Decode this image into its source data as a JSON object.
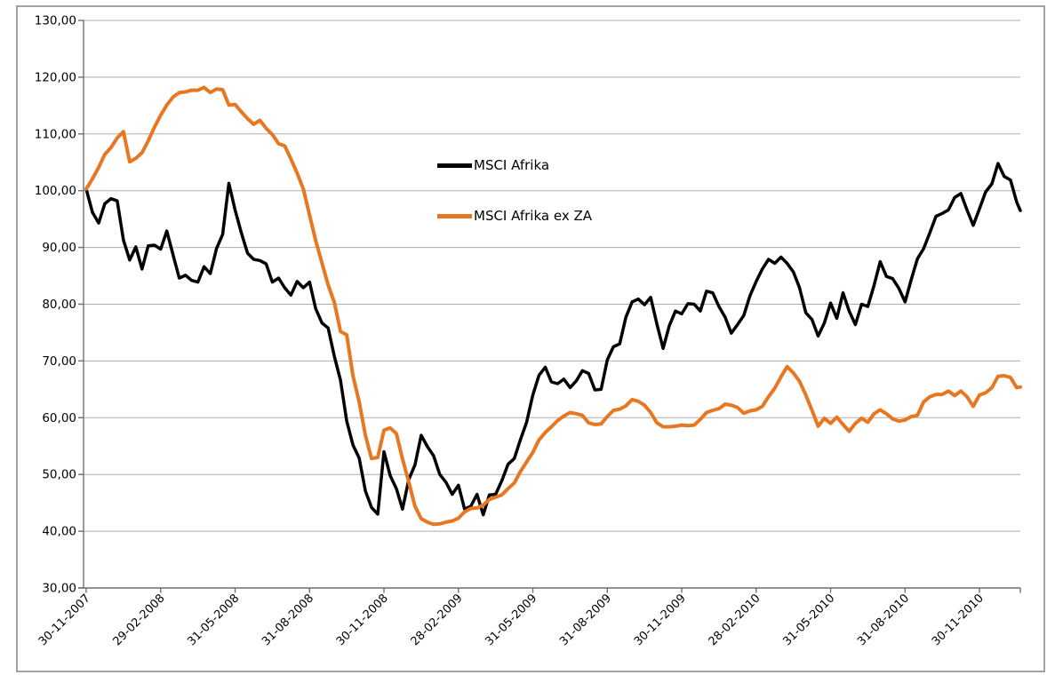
{
  "chart_data": {
    "type": "line",
    "title": "",
    "grid": true,
    "x_axis": {
      "unit": "date",
      "months_per_tick": 3,
      "tick_labels": [
        "30-11-2007",
        "29-02-2008",
        "31-05-2008",
        "31-08-2008",
        "30-11-2008",
        "28-02-2009",
        "31-05-2009",
        "31-08-2009",
        "30-11-2009",
        "28-02-2010",
        "31-05-2010",
        "31-08-2010",
        "30-11-2010"
      ]
    },
    "y_axis": {
      "min": 30,
      "max": 130,
      "step": 10,
      "tick_labels": [
        "30,00",
        "40,00",
        "50,00",
        "60,00",
        "70,00",
        "80,00",
        "90,00",
        "100,00",
        "110,00",
        "120,00",
        "130,00"
      ]
    },
    "legend": {
      "position": "inside-upper-middle",
      "items": [
        {
          "label": "MSCI Afrika",
          "color": "#000000"
        },
        {
          "label": "MSCI Afrika ex ZA",
          "color": "#E87722"
        }
      ]
    },
    "series": [
      {
        "name": "MSCI Afrika",
        "color": "#000000",
        "stroke_width": 3.5,
        "t0_months": 0,
        "dt_months": 0.25,
        "values": [
          100.3,
          96.2,
          94.3,
          97.7,
          98.6,
          98.2,
          91.3,
          87.8,
          90.1,
          86.2,
          90.3,
          90.4,
          89.7,
          92.9,
          88.7,
          84.6,
          85.1,
          84.2,
          83.9,
          86.6,
          85.4,
          89.8,
          92.3,
          101.3,
          96.6,
          92.6,
          89,
          87.9,
          87.7,
          87.1,
          83.9,
          84.6,
          82.9,
          81.6,
          84,
          82.9,
          83.9,
          79.2,
          76.7,
          75.8,
          70.8,
          66.6,
          59.4,
          55.2,
          52.9,
          47.1,
          44.2,
          43,
          54,
          49.8,
          47.5,
          43.9,
          49.1,
          51.7,
          56.9,
          54.9,
          53.3,
          50,
          48.6,
          46.5,
          48.1,
          43.9,
          44.4,
          46.5,
          42.9,
          46.4,
          46.5,
          48.9,
          51.8,
          52.8,
          56.1,
          59.2,
          64,
          67.5,
          68.9,
          66.3,
          66,
          66.8,
          65.3,
          66.5,
          68.3,
          67.8,
          64.9,
          65,
          70.2,
          72.5,
          73,
          77.7,
          80.4,
          80.9,
          79.9,
          81.2,
          76.5,
          72.2,
          76.2,
          78.8,
          78.3,
          80.1,
          80,
          78.8,
          82.3,
          82,
          79.6,
          77.7,
          74.9,
          76.4,
          78,
          81.5,
          84,
          86.2,
          87.9,
          87.2,
          88.3,
          87.2,
          85.7,
          82.9,
          78.5,
          77.3,
          74.4,
          76.7,
          80.2,
          77.5,
          82,
          78.8,
          76.4,
          80,
          79.6,
          83.3,
          87.5,
          84.9,
          84.5,
          82.8,
          80.4,
          84.3,
          88,
          89.8,
          92.6,
          95.5,
          96,
          96.6,
          98.8,
          99.5,
          96.6,
          93.9,
          96.8,
          99.8,
          101.2,
          104.8,
          102.5,
          101.9,
          98,
          96.5
        ]
      },
      {
        "name": "MSCI Afrika ex ZA",
        "color": "#E87722",
        "stroke_width": 4,
        "t0_months": 0,
        "dt_months": 0.25,
        "values": [
          100.3,
          102.1,
          104.1,
          106.4,
          107.6,
          109.3,
          110.4,
          105.1,
          105.7,
          106.7,
          108.8,
          111.2,
          113.3,
          115.1,
          116.5,
          117.3,
          117.4,
          117.7,
          117.7,
          118.2,
          117.3,
          117.9,
          117.8,
          115.1,
          115.2,
          113.9,
          112.7,
          111.7,
          112.4,
          111,
          109.9,
          108.3,
          107.9,
          105.6,
          103.1,
          100.3,
          95.7,
          91.2,
          87.3,
          83.4,
          80.3,
          75.2,
          74.6,
          67.4,
          62.8,
          56.9,
          52.8,
          53,
          57.8,
          58.2,
          57.2,
          52.7,
          48.7,
          44.4,
          42.2,
          41.6,
          41.2,
          41.3,
          41.6,
          41.8,
          42.3,
          43.4,
          44,
          44.1,
          44.6,
          45.6,
          46,
          46.4,
          47.5,
          48.5,
          50.5,
          52.2,
          53.9,
          56.1,
          57.4,
          58.4,
          59.5,
          60.3,
          60.9,
          60.7,
          60.4,
          59.1,
          58.8,
          58.9,
          60.2,
          61.3,
          61.5,
          62.1,
          63.2,
          62.9,
          62.2,
          60.9,
          59.1,
          58.4,
          58.4,
          58.5,
          58.7,
          58.6,
          58.7,
          59.7,
          60.9,
          61.3,
          61.6,
          62.4,
          62.2,
          61.8,
          60.8,
          61.2,
          61.4,
          62,
          63.7,
          65.2,
          67.2,
          69,
          67.9,
          66.4,
          64,
          61.3,
          58.5,
          59.9,
          59,
          60.1,
          58.8,
          57.6,
          59,
          59.9,
          59.2,
          60.7,
          61.4,
          60.7,
          59.8,
          59.4,
          59.6,
          60.2,
          60.4,
          62.8,
          63.7,
          64.1,
          64.1,
          64.7,
          63.9,
          64.7,
          63.7,
          62,
          64,
          64.4,
          65.3,
          67.3,
          67.4,
          67.1,
          65.3,
          65.4
        ]
      }
    ]
  }
}
